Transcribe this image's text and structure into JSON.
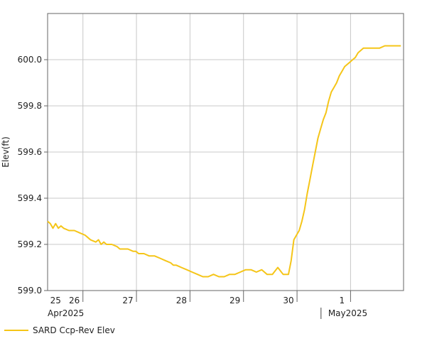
{
  "chart_data": {
    "type": "line",
    "title": "",
    "ylabel": "Elev(ft)",
    "xlabel": "",
    "ylim": [
      599.0,
      600.2
    ],
    "yticks": [
      599.0,
      599.2,
      599.4,
      599.6,
      599.8,
      600.0
    ],
    "ytick_labels": [
      "599.0",
      "599.2",
      "599.4",
      "599.6",
      "599.8",
      "600.0"
    ],
    "xlim": [
      0,
      6.65
    ],
    "x_day_labels": [
      {
        "x": 0.15,
        "label": "25"
      },
      {
        "x": 0.5,
        "label": "26"
      },
      {
        "x": 1.5,
        "label": "27"
      },
      {
        "x": 2.5,
        "label": "28"
      },
      {
        "x": 3.5,
        "label": "29"
      },
      {
        "x": 4.5,
        "label": "30"
      },
      {
        "x": 5.5,
        "label": "1"
      }
    ],
    "x_gridlines": [
      0.66,
      1.66,
      2.66,
      3.66,
      4.66,
      5.66
    ],
    "x_month_labels": [
      {
        "x": 0.0,
        "label": "Apr2025"
      },
      {
        "x": 5.4,
        "label": "May2025"
      }
    ],
    "grid": true,
    "legend_position": "bottom-left",
    "series": [
      {
        "name": "SARD Ccp-Rev Elev",
        "color": "#f5c518",
        "x": [
          0.0,
          0.05,
          0.1,
          0.15,
          0.2,
          0.25,
          0.3,
          0.4,
          0.5,
          0.6,
          0.7,
          0.75,
          0.8,
          0.9,
          0.95,
          1.0,
          1.05,
          1.1,
          1.2,
          1.3,
          1.35,
          1.4,
          1.5,
          1.6,
          1.65,
          1.7,
          1.8,
          1.9,
          2.0,
          2.1,
          2.2,
          2.3,
          2.35,
          2.4,
          2.5,
          2.6,
          2.7,
          2.8,
          2.9,
          3.0,
          3.1,
          3.2,
          3.3,
          3.4,
          3.5,
          3.6,
          3.7,
          3.8,
          3.9,
          4.0,
          4.1,
          4.2,
          4.3,
          4.4,
          4.5,
          4.55,
          4.6,
          4.65,
          4.7,
          4.75,
          4.8,
          4.85,
          4.9,
          4.95,
          5.0,
          5.05,
          5.1,
          5.15,
          5.2,
          5.25,
          5.3,
          5.35,
          5.4,
          5.45,
          5.5,
          5.55,
          5.6,
          5.65,
          5.7,
          5.75,
          5.8,
          5.9,
          6.0,
          6.1,
          6.2,
          6.3,
          6.4,
          6.5,
          6.6
        ],
        "y": [
          599.3,
          599.29,
          599.27,
          599.29,
          599.27,
          599.28,
          599.27,
          599.26,
          599.26,
          599.25,
          599.24,
          599.23,
          599.22,
          599.21,
          599.22,
          599.2,
          599.21,
          599.2,
          599.2,
          599.19,
          599.18,
          599.18,
          599.18,
          599.17,
          599.17,
          599.16,
          599.16,
          599.15,
          599.15,
          599.14,
          599.13,
          599.12,
          599.11,
          599.11,
          599.1,
          599.09,
          599.08,
          599.07,
          599.06,
          599.06,
          599.07,
          599.06,
          599.06,
          599.07,
          599.07,
          599.08,
          599.09,
          599.09,
          599.08,
          599.09,
          599.07,
          599.07,
          599.1,
          599.07,
          599.07,
          599.13,
          599.22,
          599.24,
          599.26,
          599.3,
          599.35,
          599.42,
          599.48,
          599.54,
          599.6,
          599.66,
          599.7,
          599.74,
          599.77,
          599.82,
          599.86,
          599.88,
          599.9,
          599.93,
          599.95,
          599.97,
          599.98,
          599.99,
          600.0,
          600.01,
          600.03,
          600.05,
          600.05,
          600.05,
          600.05,
          600.06,
          600.06,
          600.06,
          600.06
        ]
      }
    ]
  }
}
